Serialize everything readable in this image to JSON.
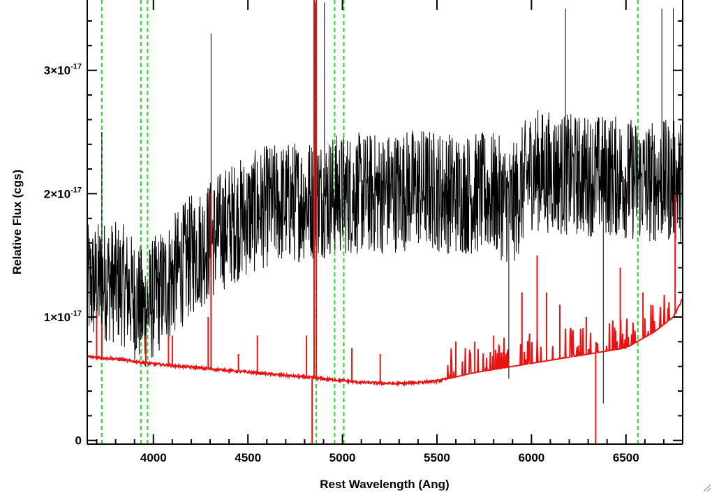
{
  "chart_data": {
    "type": "line",
    "title": "",
    "xlabel": "Rest Wavelength (Ang)",
    "ylabel": "Relative Flux (cgs)",
    "xlim": [
      3650,
      6800
    ],
    "ylim": [
      -3e-19,
      3.57e-17
    ],
    "x_ticks": [
      4000,
      4500,
      5000,
      5500,
      6000,
      6500
    ],
    "x_tick_labels": [
      "4000",
      "4500",
      "5000",
      "5500",
      "6000",
      "6500"
    ],
    "y_ticks": [
      0,
      1e-17,
      2e-17,
      3e-17
    ],
    "y_tick_labels": [
      {
        "base": "0",
        "exp": ""
      },
      {
        "base": "1×10",
        "exp": "-17"
      },
      {
        "base": "2×10",
        "exp": "-17"
      },
      {
        "base": "3×10",
        "exp": "-17"
      }
    ],
    "grid": false,
    "reference_lines": {
      "color": "#22dd22",
      "style": "dashed",
      "x": [
        3727,
        3934,
        3969,
        4861,
        4959,
        5007,
        6563
      ]
    },
    "series": [
      {
        "color": "#000000",
        "noise": 5e-18,
        "continuum": [
          [
            3650,
            1.25e-17
          ],
          [
            3750,
            1.3e-17
          ],
          [
            3850,
            1.25e-17
          ],
          [
            3950,
            1.05e-17
          ],
          [
            4000,
            1.15e-17
          ],
          [
            4200,
            1.5e-17
          ],
          [
            4400,
            1.75e-17
          ],
          [
            4600,
            1.9e-17
          ],
          [
            4800,
            1.95e-17
          ],
          [
            5000,
            2e-17
          ],
          [
            5200,
            2e-17
          ],
          [
            5400,
            2.05e-17
          ],
          [
            5600,
            2e-17
          ],
          [
            5800,
            2e-17
          ],
          [
            5900,
            1.9e-17
          ],
          [
            6000,
            2.2e-17
          ],
          [
            6200,
            2.15e-17
          ],
          [
            6400,
            2.15e-17
          ],
          [
            6600,
            2.1e-17
          ],
          [
            6800,
            2.1e-17
          ]
        ],
        "spikes": [
          [
            3727,
            2.5e-17
          ],
          [
            4305,
            3.3e-17
          ],
          [
            4855,
            3.55e-17
          ],
          [
            4905,
            3.55e-17
          ],
          [
            6180,
            3.5e-17
          ],
          [
            6690,
            3.5e-17
          ],
          [
            6750,
            3.5e-17
          ],
          [
            5880,
            5e-18
          ],
          [
            6380,
            3e-18
          ]
        ]
      },
      {
        "color": "#ee1111",
        "continuum": [
          [
            3650,
            6.8e-18
          ],
          [
            3800,
            6.6e-18
          ],
          [
            4000,
            6.2e-18
          ],
          [
            4300,
            5.8e-18
          ],
          [
            4600,
            5.4e-18
          ],
          [
            4900,
            5e-18
          ],
          [
            5100,
            4.7e-18
          ],
          [
            5300,
            4.6e-18
          ],
          [
            5500,
            4.8e-18
          ],
          [
            5700,
            5.5e-18
          ],
          [
            5900,
            6e-18
          ],
          [
            6100,
            6.5e-18
          ],
          [
            6300,
            7e-18
          ],
          [
            6500,
            7.5e-18
          ],
          [
            6650,
            8.8e-18
          ],
          [
            6750,
            1e-17
          ],
          [
            6800,
            1.15e-17
          ]
        ],
        "spikes": [
          [
            3700,
            1.05e-17
          ],
          [
            3727,
            9.5e-18
          ],
          [
            3960,
            8.5e-18
          ],
          [
            4080,
            8.5e-18
          ],
          [
            4100,
            8.5e-18
          ],
          [
            4290,
            1e-17
          ],
          [
            4305,
            2e-17
          ],
          [
            4450,
            7e-18
          ],
          [
            4550,
            8.5e-18
          ],
          [
            4810,
            8.5e-18
          ],
          [
            4840,
            -3e-19
          ],
          [
            4850,
            3.57e-17
          ],
          [
            4862,
            3.57e-17
          ],
          [
            5050,
            7.5e-18
          ],
          [
            5200,
            7e-18
          ],
          [
            5600,
            8e-18
          ],
          [
            5700,
            8e-18
          ],
          [
            5800,
            8.5e-18
          ],
          [
            5950,
            1.2e-17
          ],
          [
            6030,
            1.5e-17
          ],
          [
            6080,
            1.2e-17
          ],
          [
            6150,
            1.1e-17
          ],
          [
            6290,
            1e-17
          ],
          [
            6340,
            -3e-19
          ],
          [
            6470,
            1.4e-17
          ],
          [
            6590,
            1.2e-17
          ],
          [
            6760,
            2e-17
          ]
        ]
      }
    ]
  }
}
